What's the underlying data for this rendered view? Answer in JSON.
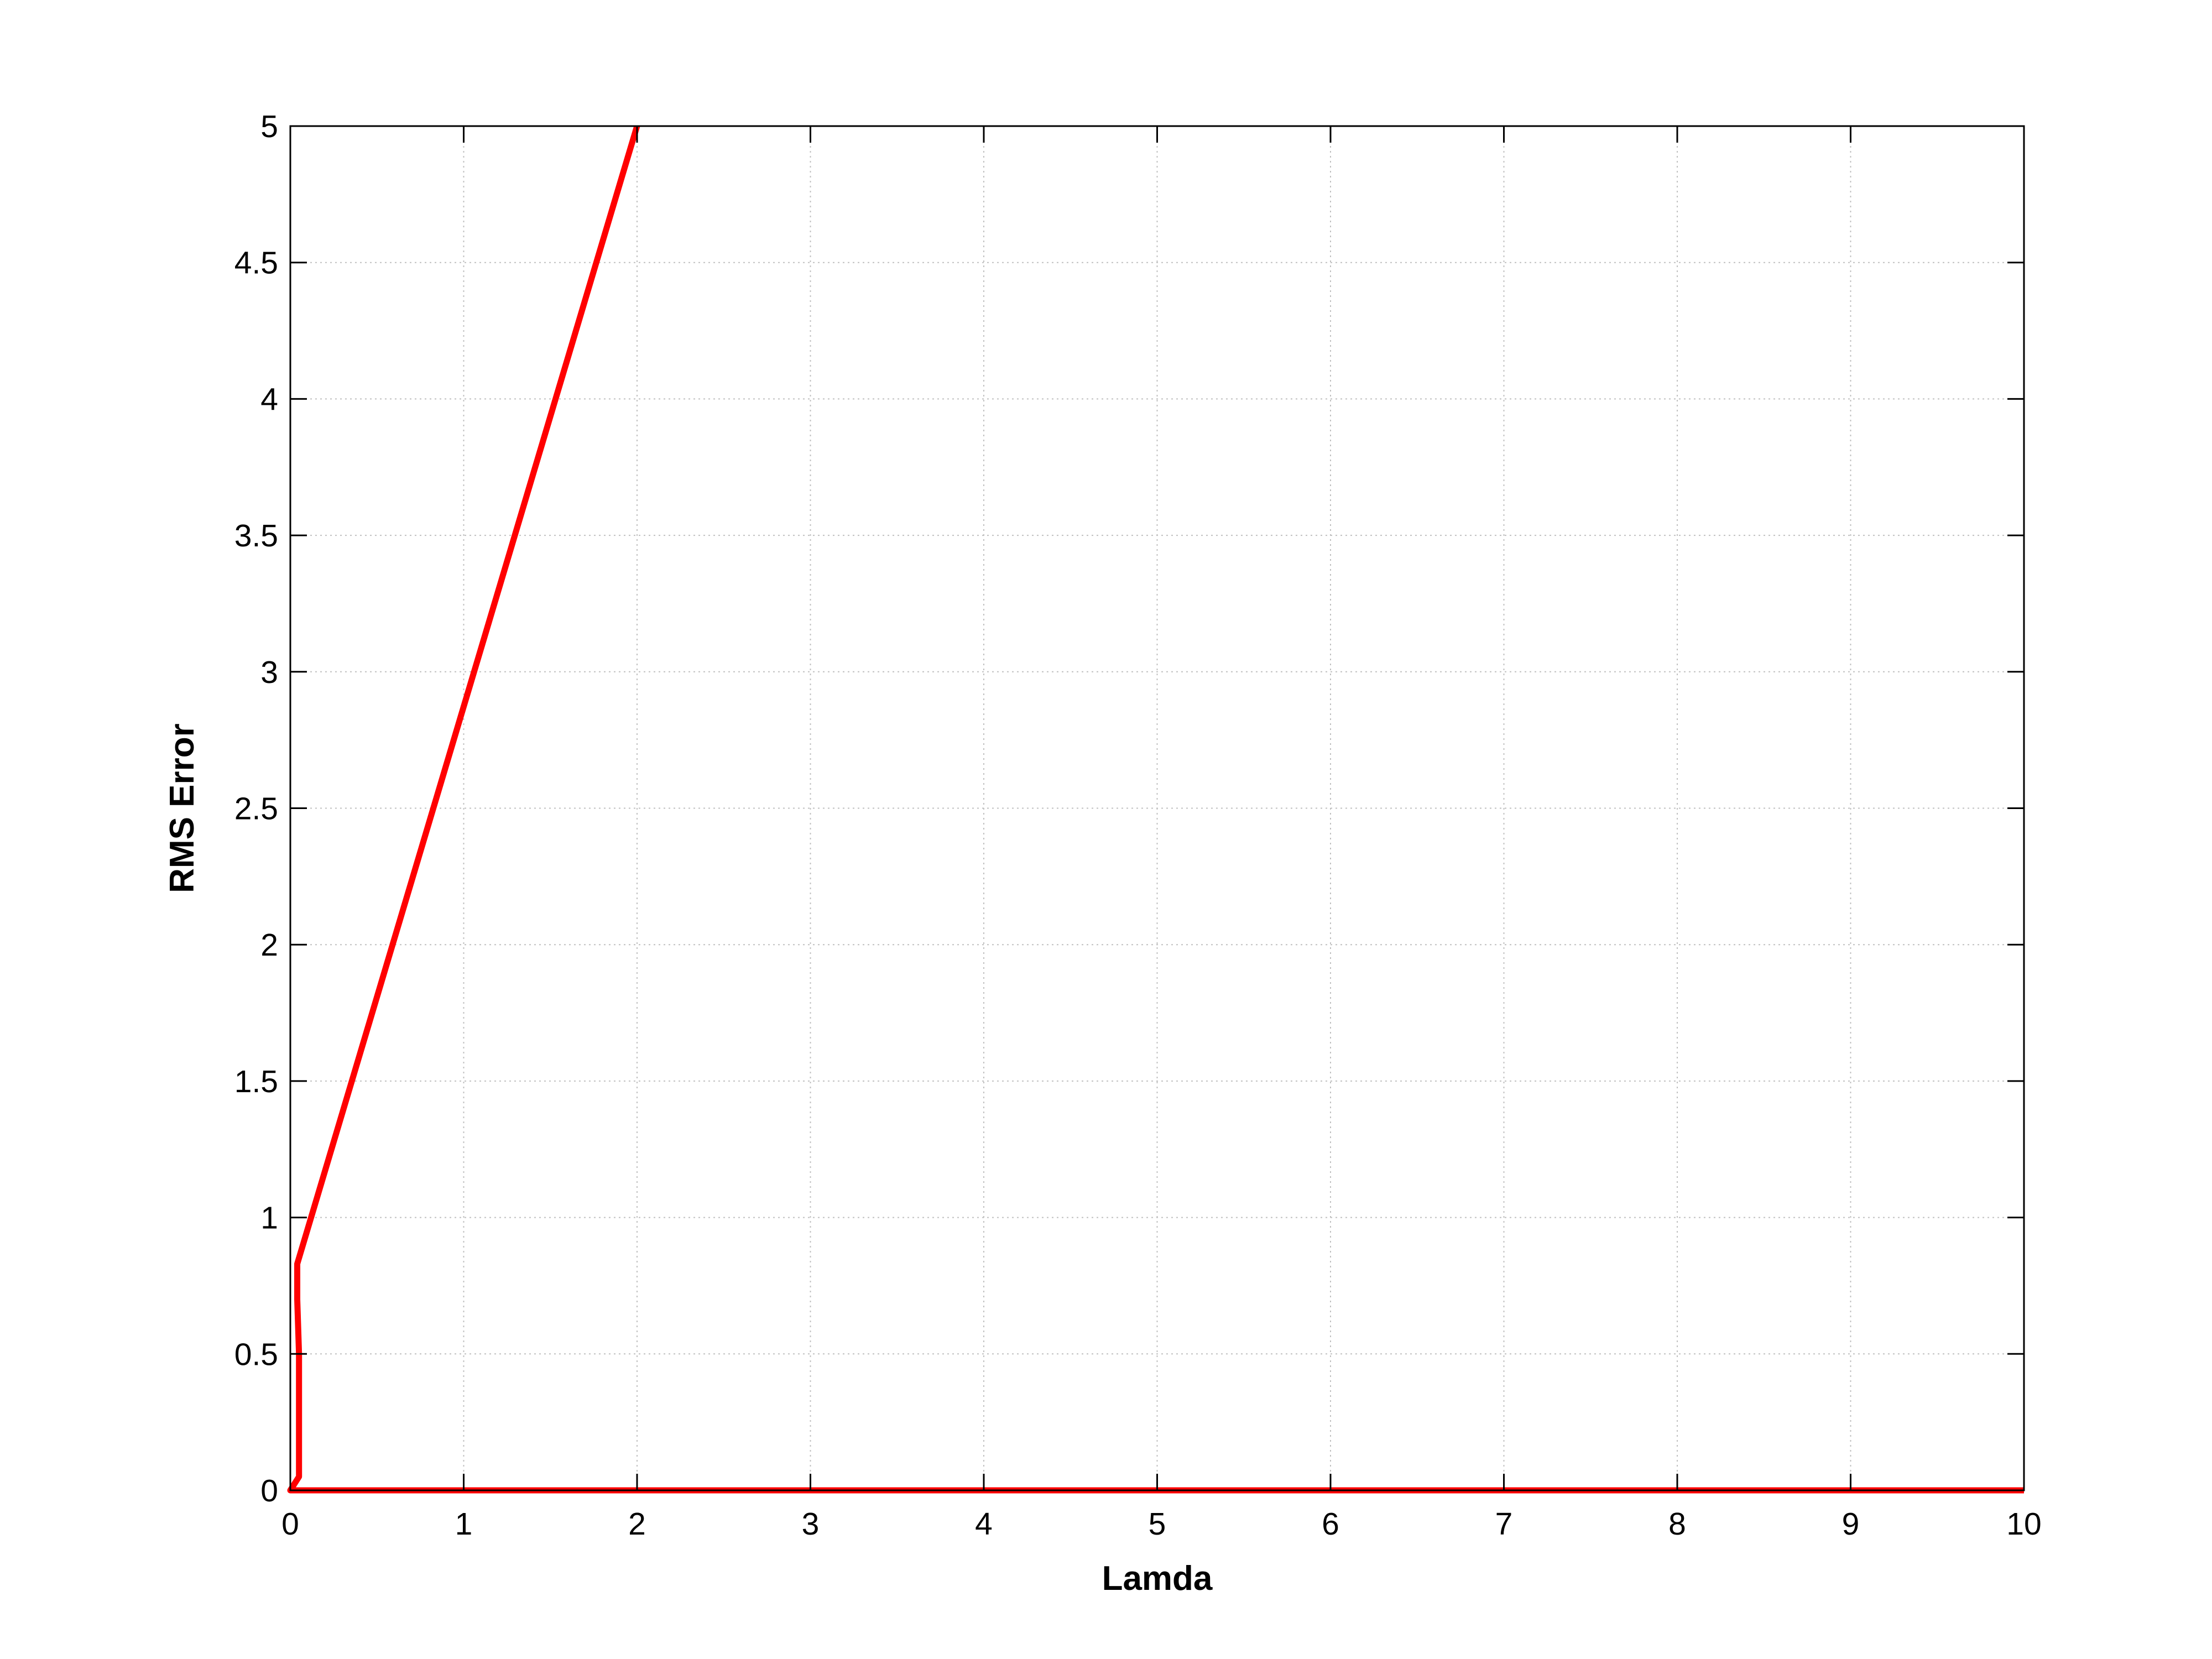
{
  "chart_data": {
    "type": "line",
    "title": "",
    "xlabel": "Lamda",
    "ylabel": "RMS Error",
    "xlim": [
      0,
      10
    ],
    "ylim": [
      0,
      5
    ],
    "xticks": [
      0,
      1,
      2,
      3,
      4,
      5,
      6,
      7,
      8,
      9,
      10
    ],
    "yticks": [
      0,
      0.5,
      1,
      1.5,
      2,
      2.5,
      3,
      3.5,
      4,
      4.5,
      5
    ],
    "grid": true,
    "legend": "none",
    "series": [
      {
        "color": "#ff0000",
        "x": [
          2.0,
          0.04,
          0.04,
          0.05,
          0.05,
          0.01,
          0.0,
          0.0,
          10.0
        ],
        "y": [
          5.0,
          0.83,
          0.7,
          0.5,
          0.05,
          0.01,
          0.0,
          0.0,
          0.0
        ]
      }
    ]
  },
  "colors": {
    "axis": "#000000",
    "grid": "#c0c0c0",
    "background": "#ffffff"
  }
}
